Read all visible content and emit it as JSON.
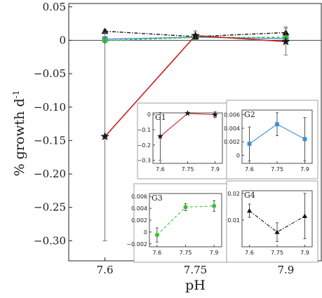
{
  "chart_data": [
    {
      "type": "line",
      "xlabel": "pH",
      "ylabel": "% growth d",
      "ylabel_superscript": "-1",
      "x": [
        7.6,
        7.75,
        7.9
      ],
      "xticks": [
        "7.6",
        "7.75",
        "7.9"
      ],
      "ylim": [
        -0.33,
        0.055
      ],
      "yticks": [
        "0.05",
        "0",
        "−0.05",
        "−0.10",
        "−0.15",
        "−0.20",
        "−0.25",
        "−0.30"
      ],
      "grid": false,
      "series": [
        {
          "group": "G1",
          "marker": "star",
          "color": "#cc1f1f",
          "line": "solid",
          "values": [
            -0.144,
            0.007,
            -0.002
          ],
          "error": [
            0.156,
            0.007,
            0.02
          ]
        },
        {
          "group": "G2",
          "marker": "square",
          "color": "#3a8fd6",
          "line": "solid",
          "values": [
            0.0017,
            0.0046,
            0.0024
          ],
          "error": [
            0.0025,
            0.0017,
            0.0032
          ]
        },
        {
          "group": "G3",
          "marker": "circle",
          "color": "#3bbf3b",
          "line": "dashed",
          "values": [
            -0.0005,
            0.0042,
            0.0044
          ],
          "error": [
            0.0012,
            0.0006,
            0.0009
          ]
        },
        {
          "group": "G4",
          "marker": "triangle",
          "color": "#111111",
          "line": "dashdot",
          "values": [
            0.0135,
            0.0055,
            0.0115
          ],
          "error": [
            0.0025,
            0.0035,
            0.0085
          ]
        }
      ]
    },
    {
      "type": "line",
      "title": "G1",
      "marker": "star",
      "color": "#cc1f1f",
      "line": "solid",
      "x": [
        7.6,
        7.75,
        7.9
      ],
      "xticks": [
        "7.6",
        "7.75",
        "7.9"
      ],
      "values": [
        -0.144,
        0.007,
        -0.002
      ],
      "error": [
        0.156,
        0.007,
        0.02
      ],
      "ylim": [
        -0.32,
        0.01
      ],
      "yticks": [
        "0",
        "−0.1",
        "−0.2",
        "−0.3"
      ]
    },
    {
      "type": "line",
      "title": "G2",
      "marker": "square",
      "color": "#3a8fd6",
      "line": "solid",
      "x": [
        7.6,
        7.75,
        7.9
      ],
      "xticks": [
        "7.6",
        "7.75",
        "7.9"
      ],
      "values": [
        0.0017,
        0.0046,
        0.0024
      ],
      "error": [
        0.0025,
        0.0017,
        0.0032
      ],
      "ylim": [
        -0.0012,
        0.0067
      ],
      "yticks": [
        "0",
        "0.002",
        "0.004",
        "0.006"
      ]
    },
    {
      "type": "line",
      "title": "G3",
      "marker": "circle",
      "color": "#3bbf3b",
      "line": "dashed",
      "x": [
        7.6,
        7.75,
        7.9
      ],
      "xticks": [
        "7.6",
        "7.75",
        "7.9"
      ],
      "values": [
        -0.0005,
        0.0042,
        0.0044
      ],
      "error": [
        0.0012,
        0.0006,
        0.0009
      ],
      "ylim": [
        -0.0025,
        0.0065
      ],
      "yticks": [
        "0",
        "0.002",
        "0.004",
        "0.006",
        "−0.002"
      ]
    },
    {
      "type": "line",
      "title": "G4",
      "marker": "triangle",
      "color": "#111111",
      "line": "dashdot",
      "x": [
        7.6,
        7.75,
        7.9
      ],
      "xticks": [
        "7.6",
        "7.75",
        "7.9"
      ],
      "values": [
        0.0135,
        0.0055,
        0.0115
      ],
      "error": [
        0.0025,
        0.0035,
        0.0085
      ],
      "ylim": [
        0.0,
        0.021
      ],
      "yticks": [
        "0.01",
        "0.02"
      ]
    }
  ]
}
